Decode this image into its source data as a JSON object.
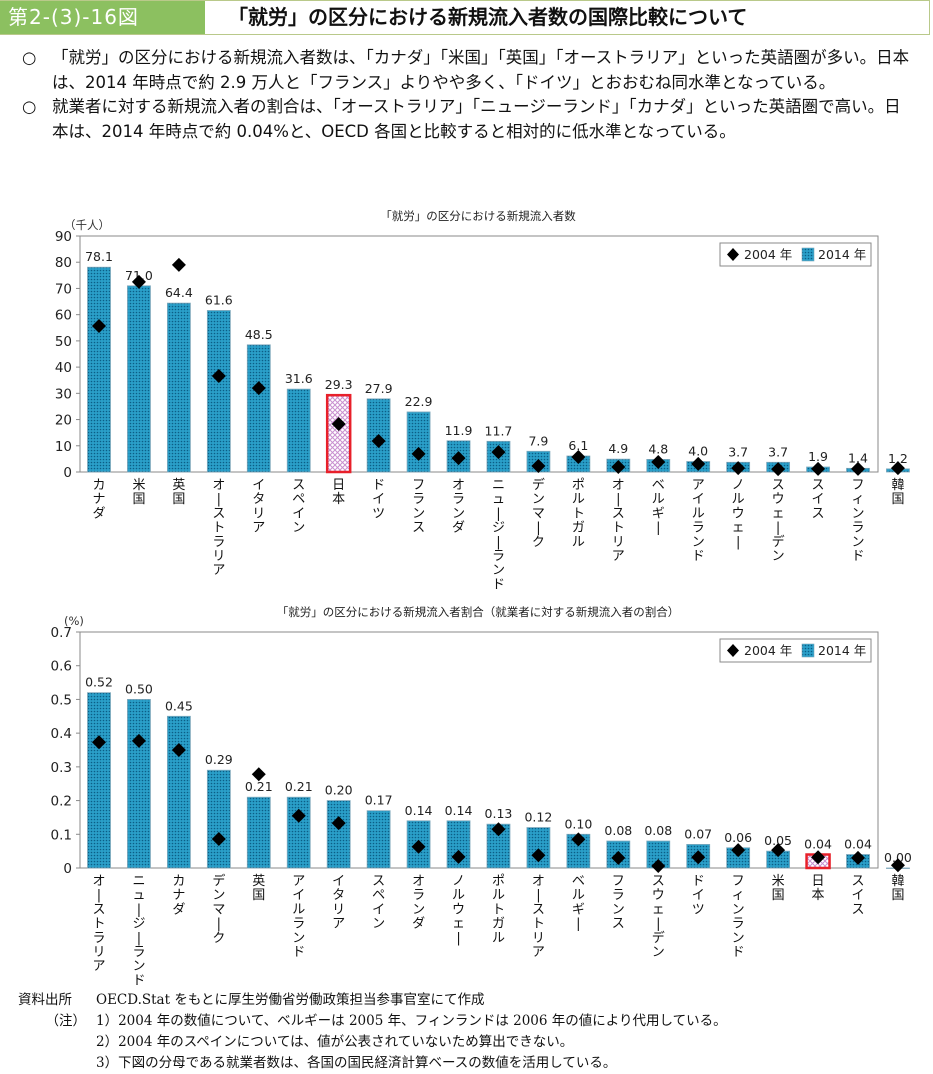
{
  "header": {
    "figure_label": "第2-(3)-16図",
    "title": "「就労」の区分における新規流入者数の国際比較について"
  },
  "summary": [
    {
      "bullet": "○",
      "text": "「就労」の区分における新規流入者数は、「カナダ」「米国」「英国」「オーストラリア」といった英語圏が多い。日本は、2014 年時点で約 2.9 万人と「フランス」よりやや多く、「ドイツ」とおおむね同水準となっている。"
    },
    {
      "bullet": "○",
      "text": "就業者に対する新規流入者の割合は、「オーストラリア」「ニュージーランド」「カナダ」といった英語圏で高い。日本は、2014 年時点で約 0.04%と、OECD 各国と比較すると相対的に低水準となっている。"
    }
  ],
  "colors": {
    "header_green": "#8cc060",
    "bar_fill": "#2a9fc9",
    "bar_dot": "#0b5e86",
    "japan_outline": "#e8202a",
    "japan_fill": "#c98fd0",
    "diamond": "#000000"
  },
  "chart_data": [
    {
      "type": "bar",
      "title": "「就労」の区分における新規流入者数",
      "ylabel": "（千人）",
      "xlabel": "",
      "ylim": [
        0,
        90
      ],
      "yticks": [
        0,
        10,
        20,
        30,
        40,
        50,
        60,
        70,
        80,
        90
      ],
      "grid": false,
      "legend_position": "top-right",
      "highlight": "日本",
      "categories": [
        "カナダ",
        "米国",
        "英国",
        "オーストラリア",
        "イタリア",
        "スペイン",
        "日本",
        "ドイツ",
        "フランス",
        "オランダ",
        "ニュージーランド",
        "デンマーク",
        "ポルトガル",
        "オーストリア",
        "ベルギー",
        "アイルランド",
        "ノルウェー",
        "スウェーデン",
        "スイス",
        "フィンランド",
        "韓国"
      ],
      "series": [
        {
          "name": "2004 年",
          "marker": "diamond",
          "values": [
            55.7,
            72.5,
            79.0,
            36.6,
            32.0,
            null,
            18.3,
            11.8,
            6.9,
            5.3,
            7.6,
            2.3,
            5.7,
            1.9,
            3.8,
            3.1,
            1.5,
            1.1,
            1.2,
            1.2,
            1.5
          ]
        },
        {
          "name": "2014 年",
          "marker": "bar",
          "values": [
            78.1,
            71.0,
            64.4,
            61.6,
            48.5,
            31.6,
            29.3,
            27.9,
            22.9,
            11.9,
            11.7,
            7.9,
            6.1,
            4.9,
            4.8,
            4.0,
            3.7,
            3.7,
            1.9,
            1.4,
            1.2
          ],
          "labels": [
            "78.1",
            "71.0",
            "64.4",
            "61.6",
            "48.5",
            "31.6",
            "29.3",
            "27.9",
            "22.9",
            "11.9",
            "11.7",
            "7.9",
            "6.1",
            "4.9",
            "4.8",
            "4.0",
            "3.7",
            "3.7",
            "1.9",
            "1.4",
            "1.2"
          ]
        }
      ]
    },
    {
      "type": "bar",
      "title": "「就労」の区分における新規流入者割合（就業者に対する新規流入者の割合）",
      "ylabel": "(%)",
      "xlabel": "",
      "ylim": [
        0,
        0.7
      ],
      "yticks": [
        "0",
        "0.1",
        "0.2",
        "0.3",
        "0.4",
        "0.5",
        "0.6",
        "0.7"
      ],
      "grid": false,
      "legend_position": "top-right",
      "highlight": "日本",
      "categories": [
        "オーストラリア",
        "ニュージーランド",
        "カナダ",
        "デンマーク",
        "英国",
        "アイルランド",
        "イタリア",
        "スペイン",
        "オランダ",
        "ノルウェー",
        "ポルトガル",
        "オーストリア",
        "ベルギー",
        "フランス",
        "スウェーデン",
        "ドイツ",
        "フィンランド",
        "米国",
        "日本",
        "スイス",
        "韓国"
      ],
      "series": [
        {
          "name": "2004 年",
          "marker": "diamond",
          "values": [
            0.373,
            0.377,
            0.35,
            0.086,
            0.278,
            0.155,
            0.133,
            null,
            0.063,
            0.033,
            0.115,
            0.038,
            0.085,
            0.03,
            0.006,
            0.032,
            0.053,
            0.053,
            0.032,
            0.03,
            0.008
          ]
        },
        {
          "name": "2014 年",
          "marker": "bar",
          "values": [
            0.52,
            0.5,
            0.45,
            0.29,
            0.21,
            0.21,
            0.2,
            0.17,
            0.14,
            0.14,
            0.13,
            0.12,
            0.1,
            0.08,
            0.08,
            0.07,
            0.06,
            0.05,
            0.04,
            0.04,
            0.0
          ],
          "labels": [
            "0.52",
            "0.50",
            "0.45",
            "0.29",
            "0.21",
            "0.21",
            "0.20",
            "0.17",
            "0.14",
            "0.14",
            "0.13",
            "0.12",
            "0.10",
            "0.08",
            "0.08",
            "0.07",
            "0.06",
            "0.05",
            "0.04",
            "0.04",
            "0.00"
          ]
        }
      ]
    }
  ],
  "footer": {
    "source_label": "資料出所",
    "source_text": "OECD.Stat をもとに厚生労働省労働政策担当参事官室にて作成",
    "notes_label": "（注）",
    "notes": [
      "1）2004 年の数値について、ベルギーは 2005 年、フィンランドは 2006 年の値により代用している。",
      "2）2004 年のスペインについては、値が公表されていないため算出できない。",
      "3）下図の分母である就業者数は、各国の国民経済計算ベースの数値を活用している。"
    ]
  }
}
